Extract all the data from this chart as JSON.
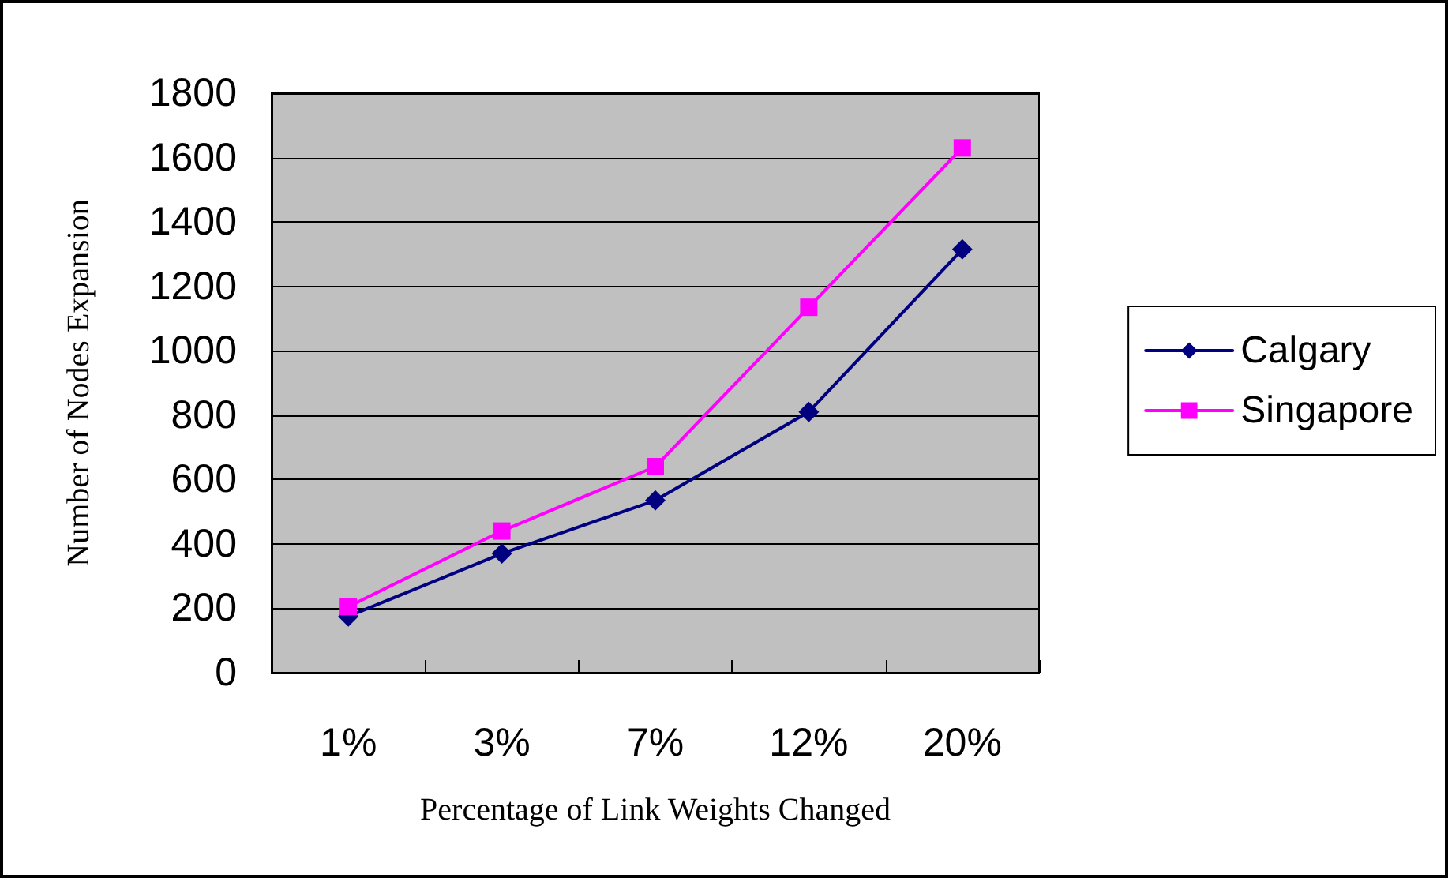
{
  "chart_data": {
    "type": "line",
    "xlabel": "Percentage of Link Weights Changed",
    "ylabel": "Number of Nodes Expansion",
    "categories": [
      "1%",
      "3%",
      "7%",
      "12%",
      "20%"
    ],
    "series": [
      {
        "name": "Calgary",
        "color": "#000080",
        "marker": "diamond",
        "values": [
          175,
          370,
          535,
          810,
          1315
        ]
      },
      {
        "name": "Singapore",
        "color": "#ff00ff",
        "marker": "square",
        "values": [
          205,
          440,
          640,
          1135,
          1630
        ]
      }
    ],
    "ylim": [
      0,
      1800
    ],
    "yticks": [
      0,
      200,
      400,
      600,
      800,
      1000,
      1200,
      1400,
      1600,
      1800
    ],
    "grid": "y",
    "legend": "right"
  }
}
